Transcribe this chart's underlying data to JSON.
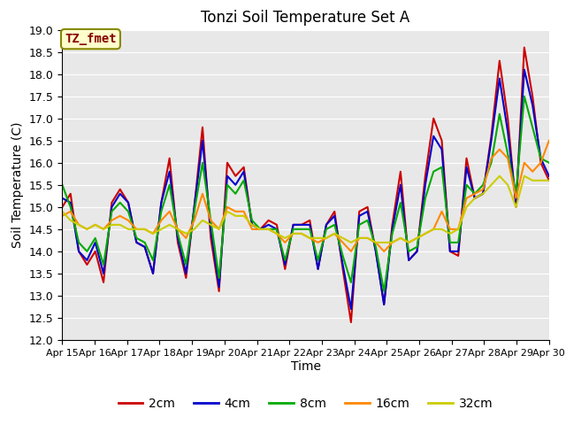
{
  "title": "Tonzi Soil Temperature Set A",
  "xlabel": "Time",
  "ylabel": "Soil Temperature (C)",
  "ylim": [
    12.0,
    19.0
  ],
  "yticks": [
    12.0,
    12.5,
    13.0,
    13.5,
    14.0,
    14.5,
    15.0,
    15.5,
    16.0,
    16.5,
    17.0,
    17.5,
    18.0,
    18.5,
    19.0
  ],
  "xtick_labels": [
    "Apr 15",
    "Apr 16",
    "Apr 17",
    "Apr 18",
    "Apr 19",
    "Apr 20",
    "Apr 21",
    "Apr 22",
    "Apr 23",
    "Apr 24",
    "Apr 25",
    "Apr 26",
    "Apr 27",
    "Apr 28",
    "Apr 29",
    "Apr 30"
  ],
  "series_colors": [
    "#cc0000",
    "#0000cc",
    "#00aa00",
    "#ff8800",
    "#cccc00"
  ],
  "series_labels": [
    "2cm",
    "4cm",
    "8cm",
    "16cm",
    "32cm"
  ],
  "legend_label": "TZ_fmet",
  "legend_label_color": "#880000",
  "legend_box_facecolor": "#ffffcc",
  "legend_box_edgecolor": "#888800",
  "plot_bg_color": "#e8e8e8",
  "fig_bg_color": "#ffffff",
  "grid_color": "#ffffff",
  "line_width": 1.5,
  "y_2cm": [
    15.0,
    15.3,
    14.0,
    13.7,
    14.0,
    13.3,
    15.1,
    15.4,
    15.1,
    14.2,
    14.1,
    13.5,
    15.1,
    16.1,
    14.2,
    13.4,
    15.0,
    16.8,
    14.3,
    13.1,
    16.0,
    15.7,
    15.9,
    14.6,
    14.5,
    14.7,
    14.6,
    13.6,
    14.6,
    14.6,
    14.7,
    13.6,
    14.6,
    14.9,
    13.6,
    12.4,
    14.9,
    15.0,
    14.0,
    12.8,
    14.6,
    15.8,
    13.8,
    14.0,
    15.7,
    17.0,
    16.5,
    14.0,
    13.9,
    16.1,
    15.2,
    15.3,
    16.6,
    18.3,
    17.0,
    15.0,
    18.6,
    17.5,
    16.0,
    15.6
  ],
  "y_4cm": [
    15.2,
    15.1,
    14.0,
    13.8,
    14.2,
    13.5,
    15.0,
    15.3,
    15.1,
    14.2,
    14.1,
    13.5,
    15.1,
    15.8,
    14.3,
    13.5,
    15.0,
    16.5,
    14.5,
    13.2,
    15.7,
    15.5,
    15.8,
    14.6,
    14.5,
    14.6,
    14.5,
    13.7,
    14.6,
    14.6,
    14.6,
    13.6,
    14.6,
    14.8,
    13.7,
    12.7,
    14.8,
    14.9,
    14.0,
    12.8,
    14.5,
    15.5,
    13.8,
    14.0,
    15.5,
    16.6,
    16.3,
    14.0,
    14.0,
    15.9,
    15.2,
    15.3,
    16.5,
    17.9,
    16.7,
    15.1,
    18.1,
    17.3,
    16.1,
    15.7
  ],
  "y_8cm": [
    15.5,
    15.0,
    14.2,
    14.0,
    14.3,
    13.7,
    14.9,
    15.1,
    14.9,
    14.3,
    14.2,
    13.8,
    14.9,
    15.5,
    14.4,
    13.7,
    14.9,
    16.0,
    14.7,
    13.4,
    15.5,
    15.3,
    15.6,
    14.7,
    14.5,
    14.5,
    14.5,
    13.8,
    14.5,
    14.5,
    14.5,
    13.8,
    14.5,
    14.6,
    13.9,
    13.3,
    14.6,
    14.7,
    14.1,
    13.1,
    14.4,
    15.1,
    14.0,
    14.1,
    15.2,
    15.8,
    15.9,
    14.2,
    14.2,
    15.5,
    15.3,
    15.5,
    16.0,
    17.1,
    16.2,
    15.3,
    17.5,
    16.8,
    16.1,
    16.0
  ],
  "y_16cm": [
    14.8,
    14.9,
    14.6,
    14.5,
    14.6,
    14.5,
    14.7,
    14.8,
    14.7,
    14.5,
    14.5,
    14.4,
    14.7,
    14.9,
    14.5,
    14.3,
    14.7,
    15.3,
    14.7,
    14.5,
    15.0,
    14.9,
    14.9,
    14.5,
    14.5,
    14.5,
    14.4,
    14.2,
    14.4,
    14.4,
    14.3,
    14.2,
    14.3,
    14.4,
    14.2,
    14.0,
    14.3,
    14.3,
    14.2,
    14.0,
    14.2,
    14.3,
    14.2,
    14.3,
    14.4,
    14.5,
    14.9,
    14.5,
    14.5,
    15.2,
    15.3,
    15.4,
    16.1,
    16.3,
    16.1,
    15.2,
    16.0,
    15.8,
    16.0,
    16.5
  ],
  "y_32cm": [
    14.9,
    14.7,
    14.6,
    14.5,
    14.6,
    14.5,
    14.6,
    14.6,
    14.5,
    14.5,
    14.5,
    14.4,
    14.5,
    14.6,
    14.5,
    14.4,
    14.5,
    14.7,
    14.6,
    14.5,
    14.9,
    14.8,
    14.8,
    14.6,
    14.5,
    14.5,
    14.4,
    14.3,
    14.4,
    14.4,
    14.3,
    14.3,
    14.3,
    14.4,
    14.3,
    14.2,
    14.3,
    14.3,
    14.2,
    14.2,
    14.2,
    14.3,
    14.2,
    14.3,
    14.4,
    14.5,
    14.5,
    14.4,
    14.5,
    15.0,
    15.2,
    15.3,
    15.5,
    15.7,
    15.5,
    15.0,
    15.7,
    15.6,
    15.6,
    15.6
  ]
}
